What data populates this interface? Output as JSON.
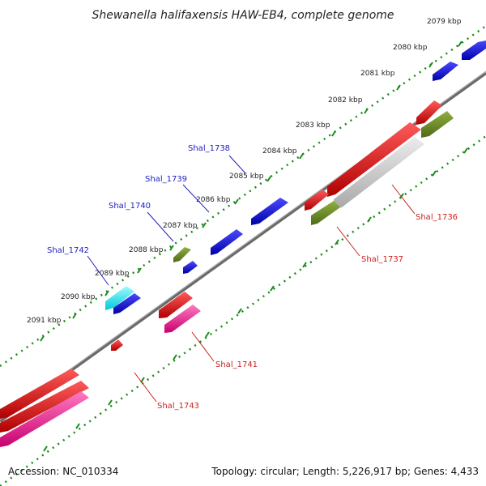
{
  "title": "Shewanella halifaxensis HAW-EB4, complete genome",
  "ticks": [
    "2079 kbp",
    "2080 kbp",
    "2081 kbp",
    "2082 kbp",
    "2083 kbp",
    "2084 kbp",
    "2085 kbp",
    "2086 kbp",
    "2087 kbp",
    "2088 kbp",
    "2089 kbp",
    "2090 kbp",
    "2091 kbp"
  ],
  "gene_labels": {
    "shal_1738": "Shal_1738",
    "shal_1739": "Shal_1739",
    "shal_1740": "Shal_1740",
    "shal_1742": "Shal_1742",
    "shal_1736": "Shal_1736",
    "shal_1737": "Shal_1737",
    "shal_1741": "Shal_1741",
    "shal_1743": "Shal_1743"
  },
  "footer": {
    "accession": "Accession: NC_010334",
    "topology": "Topology: circular; Length: 5,226,917 bp; Genes: 4,433"
  },
  "colors": {
    "backbone": "#808080",
    "forward_cds": "#0000e0",
    "reverse_cds": "#e00000",
    "pseudo": "#c8c8c8",
    "trna": "#6b8e23",
    "rrna": "#ff1493",
    "misc": "#00e5ee",
    "tick": "#1a8a1a"
  }
}
